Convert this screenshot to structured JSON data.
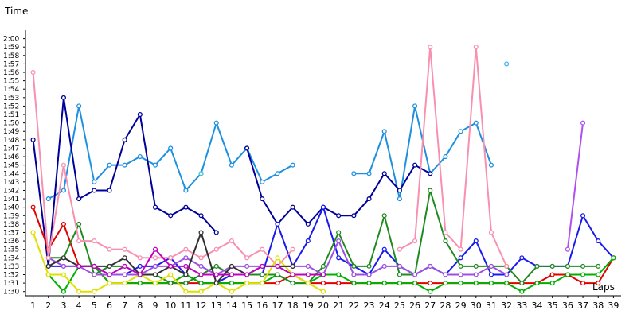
{
  "chart_data": {
    "type": "line",
    "title": "",
    "xlabel": "Laps",
    "ylabel": "Time",
    "x": [
      1,
      2,
      3,
      4,
      5,
      6,
      7,
      8,
      9,
      10,
      11,
      12,
      13,
      14,
      15,
      16,
      17,
      18,
      19,
      20,
      21,
      22,
      23,
      24,
      25,
      26,
      27,
      28,
      29,
      30,
      31,
      32,
      33,
      34,
      35,
      36,
      37,
      38,
      39
    ],
    "y_ticks": [
      "1:30",
      "1:31",
      "1:32",
      "1:33",
      "1:34",
      "1:35",
      "1:36",
      "1:37",
      "1:38",
      "1:39",
      "1:40",
      "1:41",
      "1:42",
      "1:43",
      "1:44",
      "1:45",
      "1:46",
      "1:47",
      "1:48",
      "1:49",
      "1:50",
      "1:51",
      "1:52",
      "1:53",
      "1:54",
      "1:55",
      "1:56",
      "1:57",
      "1:58",
      "1:59",
      "2:00"
    ],
    "ylim": [
      89.5,
      121
    ],
    "xlim": [
      0.5,
      39.5
    ],
    "grid": false,
    "legend": "none",
    "series": [
      {
        "color": "#1e90e0",
        "values": [
          null,
          101,
          102,
          112,
          103,
          105,
          105,
          106,
          105,
          107,
          102,
          104,
          110,
          105,
          107,
          103,
          104,
          105,
          null,
          null,
          null,
          104,
          104,
          109,
          101,
          112,
          104,
          106,
          109,
          110,
          105,
          null,
          null,
          null,
          null,
          null,
          null,
          null,
          null
        ]
      },
      {
        "color": "#000099",
        "values": [
          108,
          93,
          113,
          101,
          102,
          102,
          108,
          111,
          100,
          99,
          100,
          99,
          97,
          null,
          107,
          101,
          98,
          100,
          98,
          100,
          99,
          99,
          101,
          104,
          102,
          105,
          104,
          null,
          null,
          null,
          null,
          null,
          null,
          null,
          null,
          null,
          null,
          null,
          null
        ]
      },
      {
        "color": "#1a1aee",
        "values": [
          null,
          93,
          93,
          93,
          93,
          92,
          92,
          93,
          93,
          94,
          92,
          91,
          91,
          92,
          92,
          92,
          98,
          93,
          96,
          100,
          94,
          93,
          92,
          95,
          93,
          92,
          93,
          92,
          94,
          96,
          92,
          92,
          94,
          93,
          93,
          93,
          99,
          96,
          94
        ]
      },
      {
        "color": "#e00000",
        "values": [
          100,
          95,
          98,
          93,
          93,
          91,
          91,
          91,
          91,
          91,
          91,
          91,
          91,
          91,
          91,
          91,
          91,
          92,
          91,
          91,
          91,
          91,
          91,
          91,
          91,
          91,
          91,
          91,
          91,
          91,
          91,
          91,
          91,
          91,
          92,
          92,
          91,
          91,
          94
        ]
      },
      {
        "color": "#00b000",
        "values": [
          null,
          92,
          90,
          93,
          93,
          91,
          91,
          91,
          91,
          91,
          92,
          91,
          91,
          91,
          91,
          91,
          92,
          91,
          91,
          92,
          92,
          91,
          91,
          91,
          91,
          91,
          90,
          91,
          91,
          91,
          91,
          91,
          90,
          91,
          91,
          92,
          92,
          92,
          94
        ]
      },
      {
        "color": "#208a20",
        "values": [
          null,
          94,
          94,
          98,
          92,
          93,
          93,
          92,
          92,
          91,
          91,
          92,
          93,
          92,
          92,
          92,
          92,
          91,
          91,
          93,
          97,
          93,
          93,
          99,
          92,
          92,
          102,
          96,
          93,
          93,
          93,
          93,
          91,
          93,
          93,
          93,
          93,
          93,
          null
        ]
      },
      {
        "color": "#9c4fe0",
        "values": [
          null,
          94,
          93,
          93,
          92,
          92,
          92,
          92,
          93,
          93,
          94,
          93,
          92,
          93,
          93,
          93,
          93,
          93,
          93,
          92,
          96,
          92,
          92,
          93,
          93,
          92,
          93,
          92,
          92,
          92,
          93,
          92,
          null,
          null,
          null,
          null,
          null,
          null,
          null
        ]
      },
      {
        "color": "#f890b0",
        "values": [
          116,
          94,
          105,
          96,
          96,
          95,
          95,
          94,
          94,
          94,
          95,
          94,
          95,
          96,
          94,
          95,
          93,
          95,
          null,
          null,
          null,
          null,
          null,
          null,
          95,
          96,
          119,
          97,
          95,
          119,
          97,
          93,
          null,
          null,
          null,
          null,
          null,
          null,
          null
        ]
      },
      {
        "color": "#e0e000",
        "values": [
          97,
          92,
          92,
          90,
          90,
          91,
          91,
          92,
          91,
          92,
          90,
          90,
          91,
          90,
          91,
          91,
          94,
          92,
          91,
          90,
          null,
          null,
          null,
          null,
          null,
          null,
          null,
          null,
          null,
          null,
          null,
          null,
          null,
          null,
          null,
          null,
          null,
          null,
          null
        ]
      },
      {
        "color": "#303030",
        "values": [
          null,
          93,
          94,
          93,
          93,
          93,
          94,
          92,
          92,
          93,
          92,
          97,
          91,
          93,
          92,
          93,
          93,
          93,
          null,
          null,
          null,
          null,
          null,
          null,
          null,
          null,
          null,
          null,
          null,
          null,
          null,
          null,
          null,
          null,
          null,
          null,
          null,
          null,
          null
        ]
      },
      {
        "color": "#c000c0",
        "values": [
          null,
          null,
          null,
          93,
          93,
          92,
          93,
          92,
          95,
          93,
          93,
          92,
          92,
          92,
          92,
          93,
          93,
          92,
          92,
          92,
          null,
          null,
          null,
          null,
          null,
          null,
          null,
          null,
          null,
          null,
          null,
          null,
          null,
          null,
          null,
          null,
          null,
          null,
          null
        ]
      },
      {
        "color": "#b050f0",
        "values": [
          null,
          null,
          null,
          null,
          null,
          null,
          null,
          null,
          null,
          null,
          null,
          null,
          null,
          null,
          null,
          null,
          null,
          null,
          null,
          null,
          null,
          null,
          null,
          null,
          null,
          null,
          null,
          null,
          null,
          null,
          null,
          null,
          null,
          null,
          null,
          95,
          110,
          null,
          null
        ]
      },
      {
        "color": "#48c8c8",
        "values": [
          null,
          null,
          null,
          null,
          null,
          null,
          null,
          null,
          null,
          null,
          null,
          104,
          null,
          null,
          null,
          null,
          null,
          null,
          null,
          null,
          null,
          null,
          null,
          null,
          null,
          null,
          null,
          null,
          null,
          null,
          null,
          null,
          null,
          null,
          null,
          null,
          null,
          null,
          null
        ]
      },
      {
        "color": "#40b8f0",
        "values": [
          null,
          null,
          null,
          null,
          null,
          null,
          null,
          null,
          null,
          null,
          null,
          null,
          null,
          null,
          null,
          null,
          null,
          null,
          null,
          null,
          null,
          null,
          null,
          null,
          null,
          null,
          null,
          null,
          null,
          null,
          null,
          117,
          null,
          null,
          null,
          null,
          null,
          null,
          null
        ]
      }
    ]
  }
}
